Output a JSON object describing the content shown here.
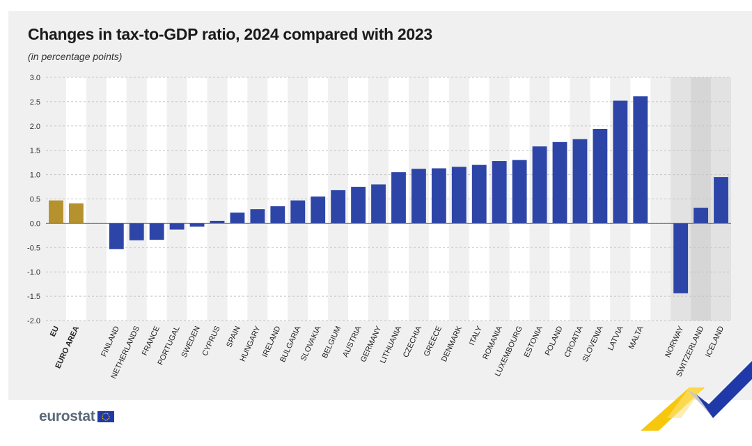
{
  "chart_data": {
    "type": "bar",
    "title": "Changes in tax-to-GDP ratio, 2024 compared with 2023",
    "subtitle": "(in percentage points)",
    "ylim": [
      -2.0,
      3.0
    ],
    "yticks": [
      "3.0",
      "2.5",
      "2.0",
      "1.5",
      "1.0",
      "0.5",
      "0.0",
      "-0.5",
      "-1.0",
      "-1.5",
      "-2.0"
    ],
    "grid": true,
    "colors": {
      "aggregate": "#b5922e",
      "member": "#2e45a8",
      "efta_band": "#dcdcdc"
    },
    "categories": [
      {
        "label": "EU",
        "value": 0.47,
        "group": "aggregate",
        "bold": true
      },
      {
        "label": "EURO AREA",
        "value": 0.41,
        "group": "aggregate",
        "bold": true
      },
      {
        "label": "",
        "value": null,
        "group": "gap"
      },
      {
        "label": "FINLAND",
        "value": -0.53,
        "group": "member"
      },
      {
        "label": "NETHERLANDS",
        "value": -0.35,
        "group": "member"
      },
      {
        "label": "FRANCE",
        "value": -0.34,
        "group": "member"
      },
      {
        "label": "PORTUGAL",
        "value": -0.13,
        "group": "member"
      },
      {
        "label": "SWEDEN",
        "value": -0.07,
        "group": "member"
      },
      {
        "label": "CYPRUS",
        "value": 0.05,
        "group": "member"
      },
      {
        "label": "SPAIN",
        "value": 0.22,
        "group": "member"
      },
      {
        "label": "HUNGARY",
        "value": 0.29,
        "group": "member"
      },
      {
        "label": "IRELAND",
        "value": 0.35,
        "group": "member"
      },
      {
        "label": "BULGARIA",
        "value": 0.47,
        "group": "member"
      },
      {
        "label": "SLOVAKIA",
        "value": 0.55,
        "group": "member"
      },
      {
        "label": "BELGIUM",
        "value": 0.68,
        "group": "member"
      },
      {
        "label": "AUSTRIA",
        "value": 0.75,
        "group": "member"
      },
      {
        "label": "GERMANY",
        "value": 0.8,
        "group": "member"
      },
      {
        "label": "LITHUANIA",
        "value": 1.05,
        "group": "member"
      },
      {
        "label": "CZECHIA",
        "value": 1.12,
        "group": "member"
      },
      {
        "label": "GREECE",
        "value": 1.13,
        "group": "member"
      },
      {
        "label": "DENMARK",
        "value": 1.16,
        "group": "member"
      },
      {
        "label": "ITALY",
        "value": 1.2,
        "group": "member"
      },
      {
        "label": "ROMANIA",
        "value": 1.28,
        "group": "member"
      },
      {
        "label": "LUXEMBOURG",
        "value": 1.3,
        "group": "member"
      },
      {
        "label": "ESTONIA",
        "value": 1.58,
        "group": "member"
      },
      {
        "label": "POLAND",
        "value": 1.67,
        "group": "member"
      },
      {
        "label": "CROATIA",
        "value": 1.73,
        "group": "member"
      },
      {
        "label": "SLOVENIA",
        "value": 1.94,
        "group": "member"
      },
      {
        "label": "LATVIA",
        "value": 2.52,
        "group": "member"
      },
      {
        "label": "MALTA",
        "value": 2.61,
        "group": "member"
      },
      {
        "label": "",
        "value": null,
        "group": "gap"
      },
      {
        "label": "NORWAY",
        "value": -1.44,
        "group": "efta"
      },
      {
        "label": "SWITZERLAND",
        "value": 0.32,
        "group": "efta"
      },
      {
        "label": "ICELAND",
        "value": 0.95,
        "group": "efta"
      }
    ]
  },
  "brand": {
    "name": "eurostat"
  }
}
